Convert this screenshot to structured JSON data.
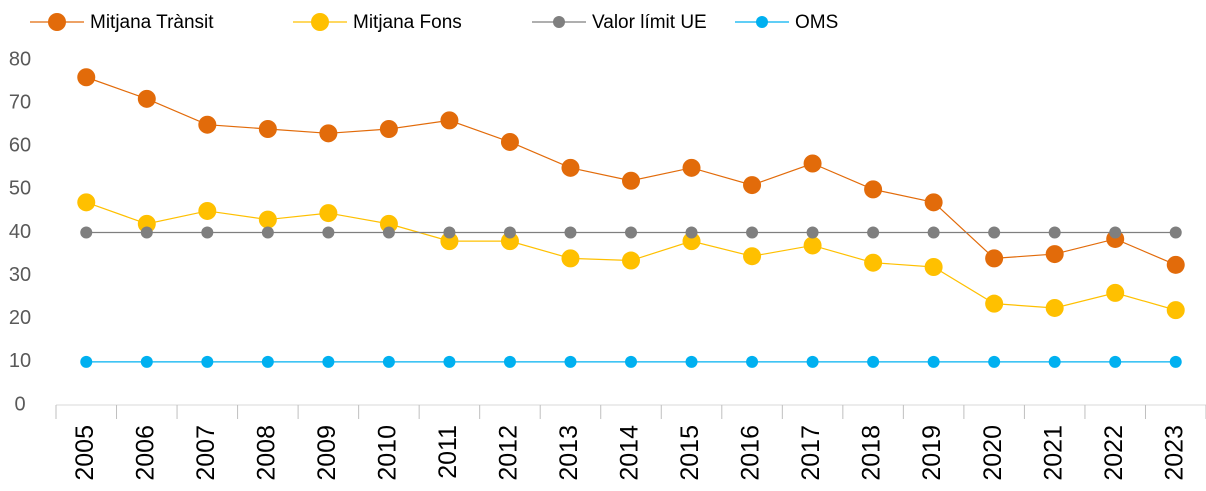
{
  "chart_data": {
    "type": "line",
    "categories": [
      "2005",
      "2006",
      "2007",
      "2008",
      "2009",
      "2010",
      "2011",
      "2012",
      "2013",
      "2014",
      "2015",
      "2016",
      "2017",
      "2018",
      "2019",
      "2020",
      "2021",
      "2022",
      "2023"
    ],
    "series": [
      {
        "name": "Mitjana Trànsit",
        "color": "#E26B0A",
        "values": [
          76,
          71,
          65,
          64,
          63,
          64,
          66,
          61,
          55,
          52,
          55,
          51,
          56,
          50,
          47,
          34,
          35,
          38.5,
          32.5
        ]
      },
      {
        "name": "Mitjana Fons",
        "color": "#FFC000",
        "values": [
          47,
          42,
          45,
          43,
          44.5,
          42,
          38,
          38,
          34,
          33.5,
          38,
          34.5,
          37,
          33,
          32,
          23.5,
          22.5,
          26,
          22
        ]
      },
      {
        "name": "Valor límit UE",
        "color": "#7F7F7F",
        "values": [
          40,
          40,
          40,
          40,
          40,
          40,
          40,
          40,
          40,
          40,
          40,
          40,
          40,
          40,
          40,
          40,
          40,
          40,
          40
        ]
      },
      {
        "name": "OMS",
        "color": "#00B0F0",
        "values": [
          10,
          10,
          10,
          10,
          10,
          10,
          10,
          10,
          10,
          10,
          10,
          10,
          10,
          10,
          10,
          10,
          10,
          10,
          10
        ]
      }
    ],
    "ylim": [
      0,
      80
    ],
    "yticks": [
      0,
      10,
      20,
      30,
      40,
      50,
      60,
      70,
      80
    ],
    "grid": false,
    "legend": "top"
  }
}
